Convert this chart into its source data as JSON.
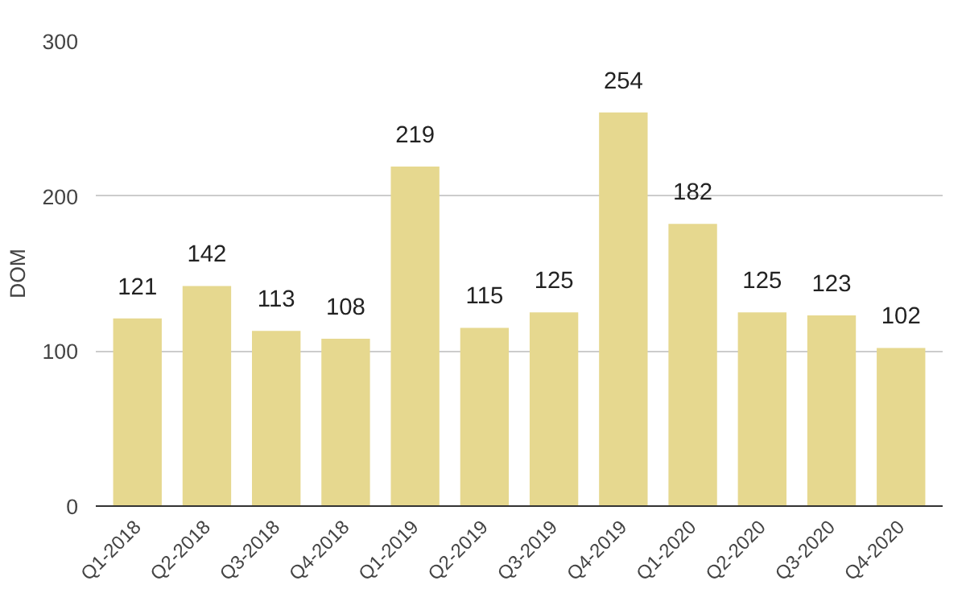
{
  "chart_data": {
    "type": "bar",
    "ylabel": "DOM",
    "categories": [
      "Q1-2018",
      "Q2-2018",
      "Q3-2018",
      "Q4-2018",
      "Q1-2019",
      "Q2-2019",
      "Q3-2019",
      "Q4-2019",
      "Q1-2020",
      "Q2-2020",
      "Q3-2020",
      "Q4-2020"
    ],
    "values": [
      121,
      142,
      113,
      108,
      219,
      115,
      125,
      254,
      182,
      125,
      123,
      102
    ],
    "color": "#e6d88f",
    "ylim": [
      0,
      300
    ],
    "yticks": [
      0,
      100,
      200,
      300
    ],
    "grid": "y",
    "data_labels": true
  }
}
